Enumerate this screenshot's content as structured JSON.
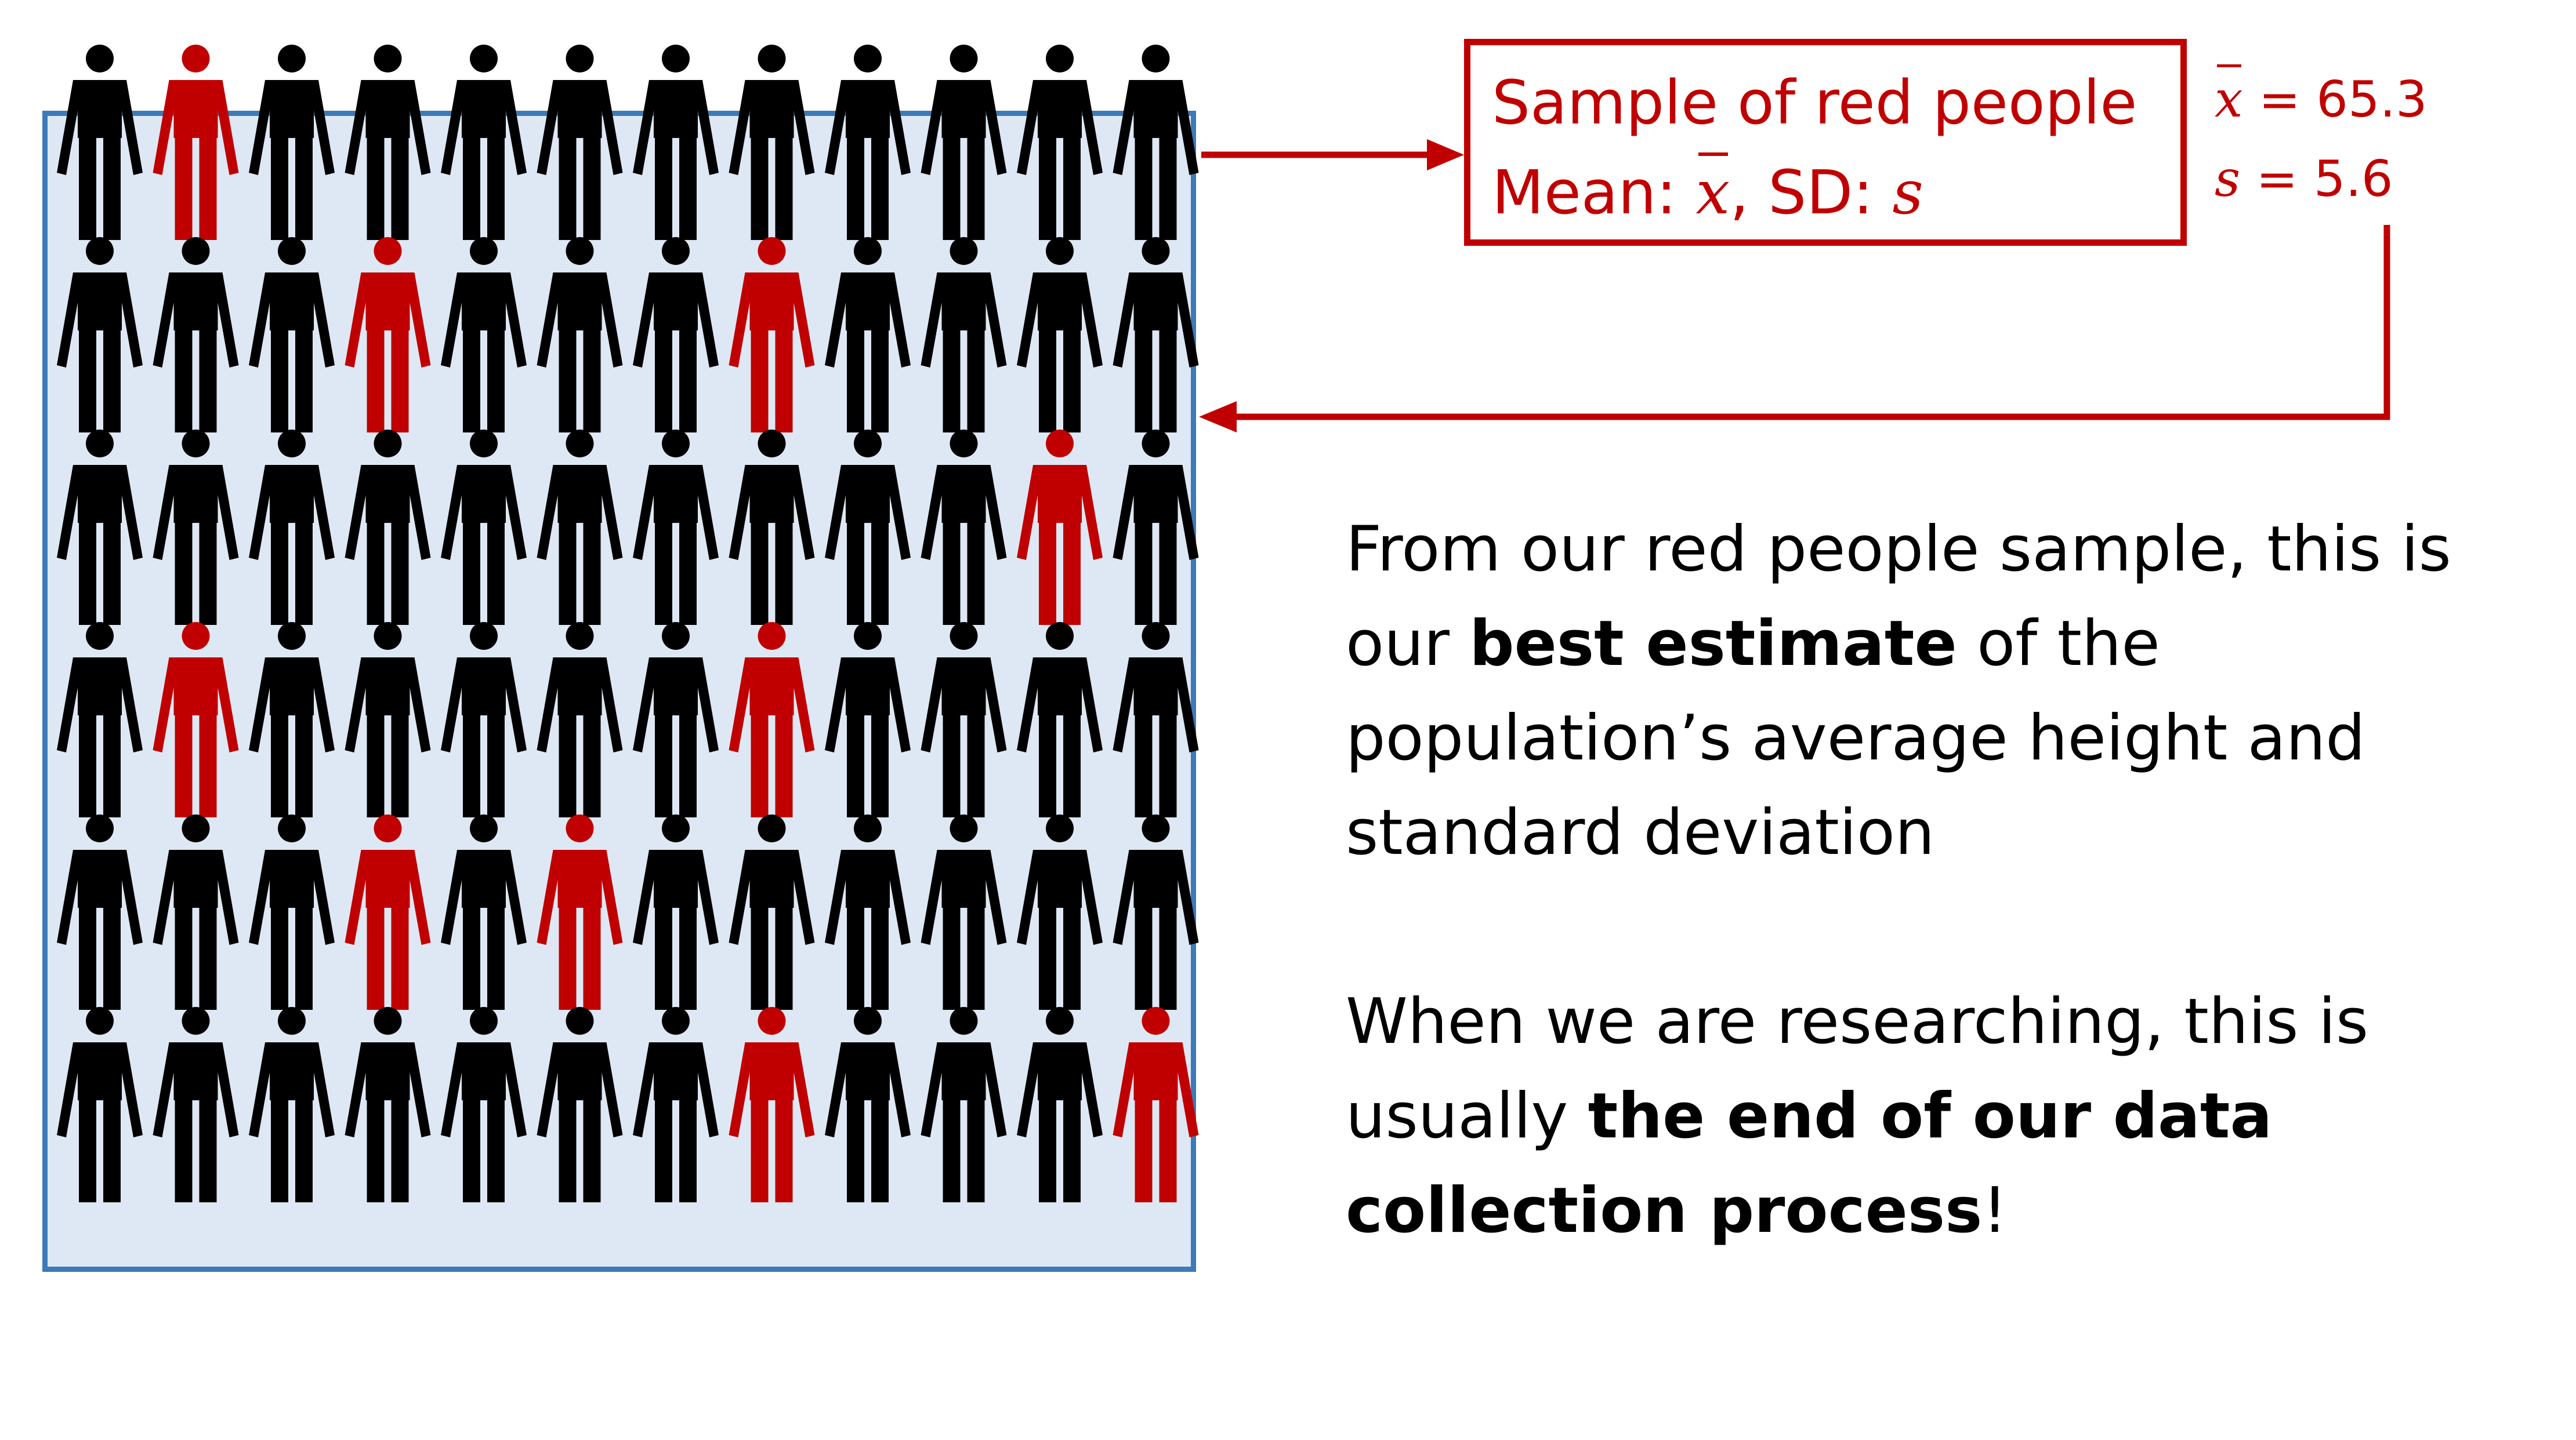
{
  "sample_box": {
    "title": "Sample of red people",
    "mean_label": "Mean: ",
    "mean_symbol": "x",
    "sep": ", SD: ",
    "sd_symbol": "s"
  },
  "stats": {
    "mean_symbol": "x",
    "mean_value": " = 65.3",
    "sd_symbol": "s",
    "sd_value": " = 5.6"
  },
  "explanation": {
    "p1_part1": "From our red people sample, this is our ",
    "p1_bold": "best estimate",
    "p1_part2": " of the population’s average height and standard deviation",
    "p2_part1": "When we are researching, this is usually ",
    "p2_bold": "the end of our data collection process",
    "p2_part2": "!"
  },
  "population": {
    "rows": 6,
    "cols": 12,
    "red_people": [
      [
        0,
        1
      ],
      [
        1,
        3
      ],
      [
        1,
        7
      ],
      [
        2,
        10
      ],
      [
        3,
        1
      ],
      [
        3,
        7
      ],
      [
        4,
        3
      ],
      [
        4,
        5
      ],
      [
        5,
        7
      ],
      [
        5,
        11
      ]
    ]
  },
  "colors": {
    "accent_red": "#c00000",
    "person_black": "#000000",
    "population_border": "#3d7ab8",
    "population_fill": "#dee8f4"
  },
  "icons": {
    "person": "person-icon",
    "arrow": "arrow-icon"
  }
}
